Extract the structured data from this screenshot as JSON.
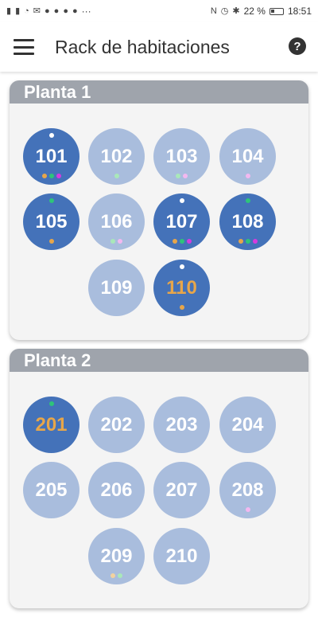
{
  "status_bar": {
    "signal_icons": [
      "signal-icon",
      "signal-icon",
      "wifi-icon",
      "mail-icon",
      "app-icon",
      "app-icon",
      "facebook-icon",
      "app-icon"
    ],
    "more": "···",
    "battery_percent": "22 %",
    "time": "18:51"
  },
  "header": {
    "title": "Rack de habitaciones",
    "help_symbol": "?"
  },
  "floors": [
    {
      "title": "Planta 1",
      "rooms": [
        {
          "number": "101",
          "status": "occupied",
          "top_dot": "white",
          "dots": [
            "orange",
            "green",
            "magenta"
          ]
        },
        {
          "number": "102",
          "status": "free",
          "top_dot": null,
          "dots": [
            "lgreen"
          ]
        },
        {
          "number": "103",
          "status": "free",
          "top_dot": null,
          "dots": [
            "lgreen",
            "pink"
          ]
        },
        {
          "number": "104",
          "status": "free",
          "top_dot": null,
          "dots": [
            "pink"
          ]
        },
        {
          "number": "105",
          "status": "occupied",
          "top_dot": "green",
          "dots": [
            "orange"
          ]
        },
        {
          "number": "106",
          "status": "free",
          "top_dot": null,
          "dots": [
            "lgreen",
            "pink"
          ]
        },
        {
          "number": "107",
          "status": "occupied",
          "top_dot": "white",
          "dots": [
            "orange",
            "green",
            "magenta"
          ]
        },
        {
          "number": "108",
          "status": "occupied",
          "top_dot": "green",
          "dots": [
            "orange",
            "green",
            "magenta"
          ]
        },
        {
          "number": "109",
          "status": "free",
          "top_dot": null,
          "dots": []
        },
        {
          "number": "110",
          "status": "occupied",
          "alert": true,
          "top_dot": "white",
          "dots": [
            "orange"
          ]
        }
      ]
    },
    {
      "title": "Planta 2",
      "rooms": [
        {
          "number": "201",
          "status": "occupied",
          "alert": true,
          "top_dot": "green",
          "dots": []
        },
        {
          "number": "202",
          "status": "free",
          "top_dot": null,
          "dots": []
        },
        {
          "number": "203",
          "status": "free",
          "top_dot": null,
          "dots": []
        },
        {
          "number": "204",
          "status": "free",
          "top_dot": null,
          "dots": []
        },
        {
          "number": "205",
          "status": "free",
          "top_dot": null,
          "dots": []
        },
        {
          "number": "206",
          "status": "free",
          "top_dot": null,
          "dots": []
        },
        {
          "number": "207",
          "status": "free",
          "top_dot": null,
          "dots": []
        },
        {
          "number": "208",
          "status": "free",
          "top_dot": null,
          "dots": [
            "pink"
          ]
        },
        {
          "number": "209",
          "status": "free",
          "top_dot": null,
          "dots": [
            "peach",
            "lgreen"
          ]
        },
        {
          "number": "210",
          "status": "free",
          "top_dot": null,
          "dots": []
        }
      ]
    }
  ],
  "colors": {
    "occupied": "#4472b9",
    "free": "#a9bddd",
    "alert_text": "#e7a64a",
    "floor_header": "#9fa4ac"
  }
}
